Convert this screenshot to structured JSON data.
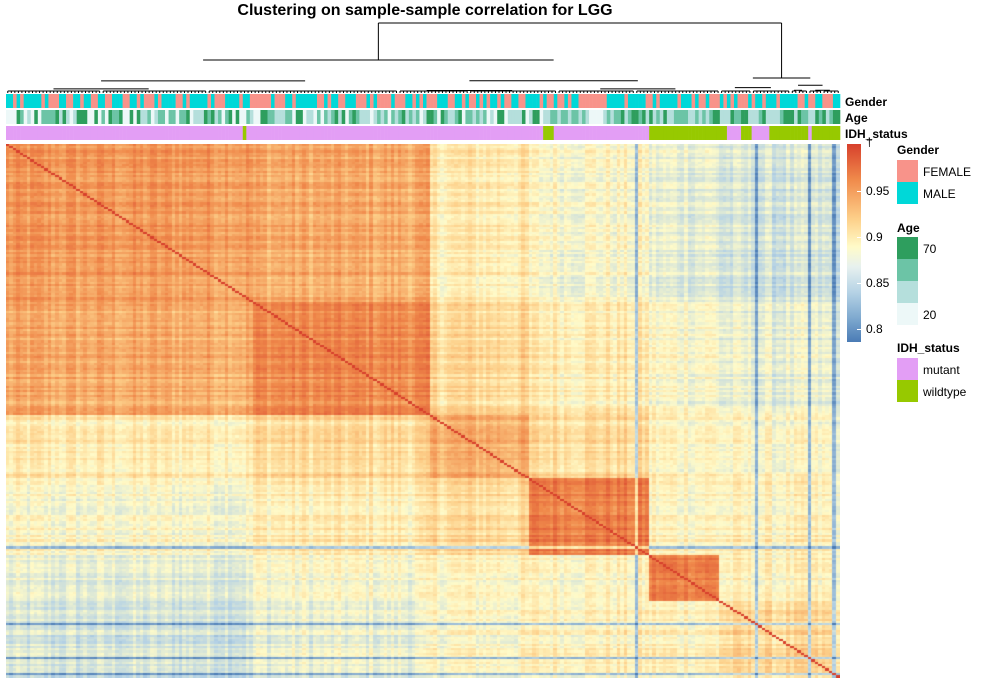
{
  "chart_data": {
    "type": "heatmap",
    "title": "Clustering on sample-sample correlation for LGG",
    "n_samples": 236,
    "block_boundaries": [
      0,
      70,
      120,
      148,
      182,
      202,
      236
    ],
    "block_self_correlation": [
      0.94,
      0.95,
      0.93,
      0.96,
      0.96,
      0.9
    ],
    "annotations": [
      {
        "name": "Gender",
        "levels": [
          "FEMALE",
          "MALE"
        ],
        "colors": [
          "#F8938A",
          "#00D8D8"
        ]
      },
      {
        "name": "Age",
        "range": [
          20,
          70
        ],
        "tick_labels": [
          "70",
          "20"
        ],
        "colors": [
          "#2E9E5E",
          "#6CC4A6",
          "#B5DFDC",
          "#EDF8F8"
        ]
      },
      {
        "name": "IDH_status",
        "levels": [
          "mutant",
          "wildtype"
        ],
        "colors": [
          "#E39EF5",
          "#97C900"
        ]
      }
    ],
    "colorbar": {
      "range": [
        0.78,
        1.0
      ],
      "ticks": [
        0.95,
        0.9,
        0.85,
        0.8
      ],
      "tick_labels": [
        "0.95",
        "0.9",
        "0.85",
        "0.8"
      ],
      "top_mark": "†",
      "colors": [
        "#4a7bb5",
        "#b5d2e5",
        "#fffbc9",
        "#fdd08a",
        "#f08a4b",
        "#d7402c"
      ]
    }
  }
}
